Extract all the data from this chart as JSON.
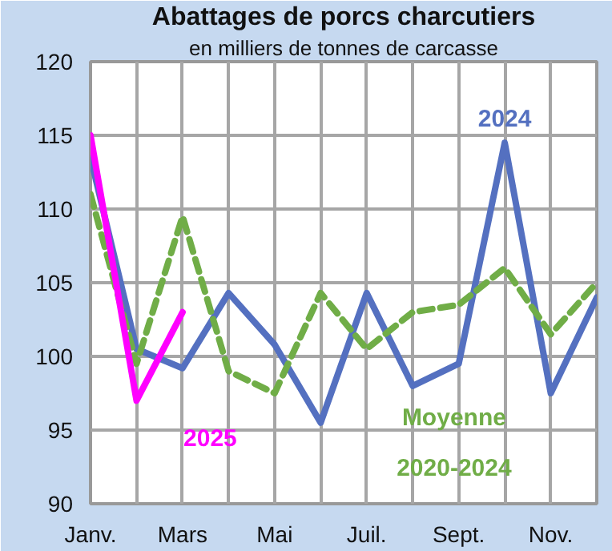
{
  "chart_data": {
    "type": "line",
    "title": "Abattages de porcs charcutiers",
    "subtitle": "en milliers de tonnes de carcasse",
    "categories": [
      "Janv.",
      null,
      "Mars",
      null,
      "Mai",
      null,
      "Juil.",
      null,
      "Sept.",
      null,
      "Nov.",
      null
    ],
    "series": [
      {
        "name": "2024",
        "color": "#5470c0",
        "values": [
          113.5,
          100.5,
          99.2,
          104.3,
          100.8,
          95.5,
          104.3,
          98,
          99.5,
          114.5,
          97.5,
          104
        ]
      },
      {
        "name": "Moyenne 2020-2024",
        "color": "#70ad47",
        "line_style": "dashed",
        "values": [
          111,
          99.5,
          109.5,
          99,
          97.5,
          104.3,
          100.5,
          103,
          103.5,
          106,
          101.5,
          105
        ]
      },
      {
        "name": "2025",
        "color": "#ff00ff",
        "values": [
          115,
          97,
          103,
          null,
          null,
          null,
          null,
          null,
          null,
          null,
          null,
          null
        ]
      }
    ],
    "ylim": [
      90,
      120
    ],
    "yticks": [
      90,
      95,
      100,
      105,
      110,
      115,
      120
    ],
    "grid": true,
    "marker": "none",
    "line_style": "solid"
  }
}
